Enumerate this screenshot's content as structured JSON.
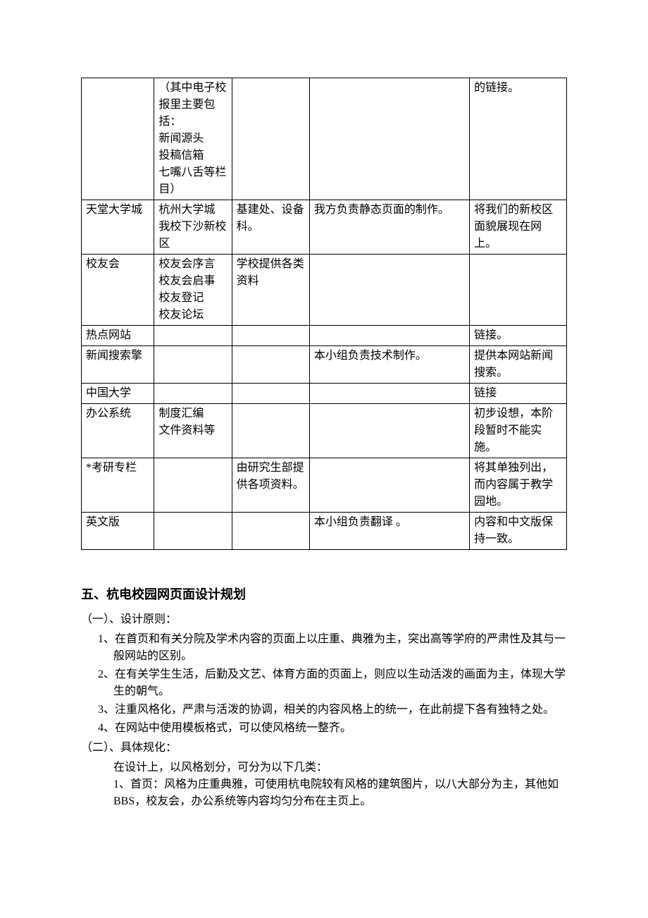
{
  "table": {
    "rows": [
      {
        "c1": "",
        "c2": "（其中电子校报里主要包括：\n新闻源头\n投稿信箱\n七嘴八舌等栏目）",
        "c3": "",
        "c4": "",
        "c5": "的链接。"
      },
      {
        "c1": "天堂大学城",
        "c2": "杭州大学城\n我校下沙新校区",
        "c3": "基建处、设备科。",
        "c4": "我方负责静态页面的制作。",
        "c5": "将我们的新校区面貌展现在网上。"
      },
      {
        "c1": "校友会",
        "c2": "校友会序言\n校友会启事\n校友登记\n校友论坛",
        "c3": "学校提供各类资料",
        "c4": "",
        "c5": ""
      },
      {
        "c1": "热点网站",
        "c2": "",
        "c3": "",
        "c4": "",
        "c5": "链接。"
      },
      {
        "c1": "新闻搜索擎",
        "c2": "",
        "c3": "",
        "c4": "本小组负责技术制作。",
        "c5": "提供本网站新闻搜索。"
      },
      {
        "c1": "中国大学",
        "c2": "",
        "c3": "",
        "c4": "",
        "c5": "链接"
      },
      {
        "c1": "办公系统",
        "c2": "制度汇编\n文件资料等",
        "c3": "",
        "c4": "",
        "c5": "初步设想，本阶段暂时不能实施。"
      },
      {
        "c1": "*考研专栏",
        "c2": "",
        "c3": "由研究生部提供各项资料。",
        "c4": "",
        "c5": "将其单独列出，而内容属于教学园地。"
      },
      {
        "c1": "英文版",
        "c2": "",
        "c3": "",
        "c4": "本小组负责翻译 。",
        "c5": "内容和中文版保持一致。"
      }
    ]
  },
  "section": {
    "title": "五、杭电校园网页面设计规划",
    "sub1": {
      "heading": "（一）、设计原则：",
      "items": [
        "1、在首页和有关分院及学术内容的页面上以庄重、典雅为主，突出高等学府的严肃性及其与一般网站的区别。",
        "2、在有关学生生活，后勤及文艺、体育方面的页面上，则应以生动活泼的画面为主，体现大学生的朝气。",
        "3、注重风格化，严肃与活泼的协调，相关的内容风格上的统一，在此前提下各有独特之处。",
        "4、在网站中使用模板格式，可以使风格统一整齐。"
      ]
    },
    "sub2": {
      "heading": "（二）、具体规化：",
      "intro": "在设计上，以风格划分，可分为以下几类：",
      "item1": "1、首页：风格为庄重典雅，可使用杭电院较有风格的建筑图片，以八大部分为主，其他如 BBS，校友会，办公系统等内容均匀分布在主页上。"
    }
  }
}
